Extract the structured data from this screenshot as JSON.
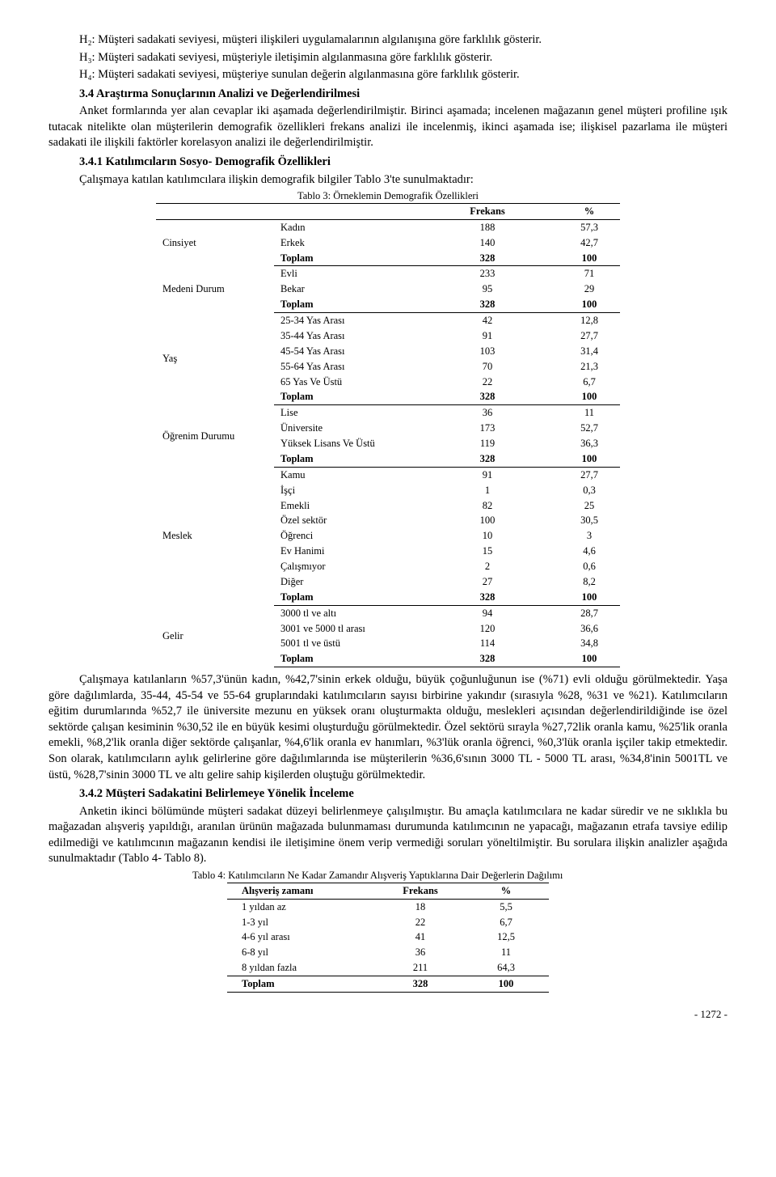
{
  "hypotheses": {
    "h2": "H₂: Müşteri sadakati seviyesi, müşteri ilişkileri uygulamalarının algılanışına göre farklılık gösterir.",
    "h3": "H₃: Müşteri sadakati seviyesi,  müşteriyle iletişimin algılanmasına göre farklılık gösterir.",
    "h4": "H₄: Müşteri sadakati seviyesi, müşteriye sunulan değerin algılanmasına göre farklılık gösterir."
  },
  "sec34": {
    "title": "3.4 Araştırma Sonuçlarının Analizi ve Değerlendirilmesi",
    "p1": "Anket formlarında yer alan cevaplar iki aşamada değerlendirilmiştir. Birinci aşamada; incelenen mağazanın genel müşteri profiline ışık tutacak nitelikte olan müşterilerin demografik özellikleri frekans analizi ile incelenmiş, ikinci aşamada ise; ilişkisel pazarlama ile müşteri sadakati ile ilişkili faktörler korelasyon analizi ile değerlendirilmiştir."
  },
  "sec341": {
    "title": "3.4.1 Katılımcıların Sosyo- Demografik Özellikleri",
    "p1": "Çalışmaya katılan katılımcılara ilişkin demografik bilgiler Tablo 3'te sunulmaktadır:"
  },
  "table3": {
    "caption": "Tablo 3: Örneklemin Demografik Özellikleri",
    "head_freq": "Frekans",
    "head_pct": "%",
    "groups": [
      {
        "label": "Cinsiyet",
        "rows": [
          {
            "name": "Kadın",
            "freq": "188",
            "pct": "57,3"
          },
          {
            "name": "Erkek",
            "freq": "140",
            "pct": "42,7"
          }
        ],
        "total": {
          "name": "Toplam",
          "freq": "328",
          "pct": "100"
        }
      },
      {
        "label": "Medeni Durum",
        "rows": [
          {
            "name": "Evli",
            "freq": "233",
            "pct": "71"
          },
          {
            "name": "Bekar",
            "freq": "95",
            "pct": "29"
          }
        ],
        "total": {
          "name": "Toplam",
          "freq": "328",
          "pct": "100"
        }
      },
      {
        "label": "Yaş",
        "rows": [
          {
            "name": "25-34 Yas Arası",
            "freq": "42",
            "pct": "12,8"
          },
          {
            "name": "35-44 Yas Arası",
            "freq": "91",
            "pct": "27,7"
          },
          {
            "name": "45-54 Yas Arası",
            "freq": "103",
            "pct": "31,4"
          },
          {
            "name": "55-64 Yas Arası",
            "freq": "70",
            "pct": "21,3"
          },
          {
            "name": "65 Yas Ve Üstü",
            "freq": "22",
            "pct": "6,7"
          }
        ],
        "total": {
          "name": "Toplam",
          "freq": "328",
          "pct": "100"
        }
      },
      {
        "label": "Öğrenim Durumu",
        "rows": [
          {
            "name": "Lise",
            "freq": "36",
            "pct": "11"
          },
          {
            "name": "Üniversite",
            "freq": "173",
            "pct": "52,7"
          },
          {
            "name": "Yüksek Lisans Ve Üstü",
            "freq": "119",
            "pct": "36,3"
          }
        ],
        "total": {
          "name": "Toplam",
          "freq": "328",
          "pct": "100"
        }
      },
      {
        "label": "Meslek",
        "rows": [
          {
            "name": "Kamu",
            "freq": "91",
            "pct": "27,7"
          },
          {
            "name": "İşçi",
            "freq": "1",
            "pct": "0,3"
          },
          {
            "name": "Emekli",
            "freq": "82",
            "pct": "25"
          },
          {
            "name": "Özel sektör",
            "freq": "100",
            "pct": "30,5"
          },
          {
            "name": "Öğrenci",
            "freq": "10",
            "pct": "3"
          },
          {
            "name": "Ev Hanimi",
            "freq": "15",
            "pct": "4,6"
          },
          {
            "name": "Çalışmıyor",
            "freq": "2",
            "pct": "0,6"
          },
          {
            "name": "Diğer",
            "freq": "27",
            "pct": "8,2"
          }
        ],
        "total": {
          "name": "Toplam",
          "freq": "328",
          "pct": "100"
        }
      },
      {
        "label": "Gelir",
        "rows": [
          {
            "name": "3000 tl ve altı",
            "freq": "94",
            "pct": "28,7"
          },
          {
            "name": "3001 ve 5000 tl arası",
            "freq": "120",
            "pct": "36,6"
          },
          {
            "name": "5001 tl ve üstü",
            "freq": "114",
            "pct": "34,8"
          }
        ],
        "total": {
          "name": "Toplam",
          "freq": "328",
          "pct": "100"
        }
      }
    ]
  },
  "after_t3": {
    "p1": "Çalışmaya katılanların %57,3'ünün kadın, %42,7'sinin erkek olduğu, büyük çoğunluğunun ise (%71) evli olduğu görülmektedir. Yaşa göre dağılımlarda, 35-44, 45-54 ve 55-64 gruplarındaki katılımcıların sayısı birbirine yakındır (sırasıyla %28, %31 ve %21). Katılımcıların eğitim durumlarında %52,7 ile üniversite mezunu en yüksek oranı oluşturmakta olduğu, meslekleri açısından değerlendirildiğinde ise özel sektörde çalışan kesiminin %30,52 ile en büyük kesimi oluşturduğu görülmektedir. Özel sektörü sırayla %27,72lik oranla kamu, %25'lik oranla emekli, %8,2'lik oranla diğer sektörde çalışanlar, %4,6'lik oranla ev hanımları, %3'lük oranla öğrenci, %0,3'lük oranla işçiler takip etmektedir. Son olarak, katılımcıların aylık gelirlerine göre dağılımlarında ise müşterilerin %36,6'sının 3000 TL - 5000 TL arası, %34,8'inin 5001TL ve üstü, %28,7'sinin 3000 TL ve altı gelire sahip kişilerden oluştuğu görülmektedir."
  },
  "sec342": {
    "title": "3.4.2 Müşteri Sadakatini Belirlemeye Yönelik İnceleme",
    "p1": "Anketin ikinci bölümünde müşteri sadakat düzeyi belirlenmeye çalışılmıştır. Bu amaçla katılımcılara ne kadar süredir ve ne sıklıkla bu mağazadan alışveriş yapıldığı, aranılan ürünün mağazada bulunmaması durumunda katılımcının ne yapacağı, mağazanın etrafa tavsiye edilip edilmediği ve katılımcının mağazanın kendisi ile iletişimine önem verip vermediği soruları yöneltilmiştir. Bu sorulara ilişkin analizler aşağıda sunulmaktadır (Tablo 4- Tablo 8)."
  },
  "table4": {
    "caption": "Tablo 4:  Katılımcıların Ne Kadar Zamandır Alışveriş Yaptıklarına Dair Değerlerin Dağılımı",
    "head_time": "Alışveriş zamanı",
    "head_freq": "Frekans",
    "head_pct": "%",
    "rows": [
      {
        "name": "1 yıldan az",
        "freq": "18",
        "pct": "5,5"
      },
      {
        "name": "1-3 yıl",
        "freq": "22",
        "pct": "6,7"
      },
      {
        "name": "4-6 yıl arası",
        "freq": "41",
        "pct": "12,5"
      },
      {
        "name": "6-8 yıl",
        "freq": "36",
        "pct": "11"
      },
      {
        "name": "8 yıldan fazla",
        "freq": "211",
        "pct": "64,3"
      }
    ],
    "total": {
      "name": "Toplam",
      "freq": "328",
      "pct": "100"
    }
  },
  "pagenum": "- 1272 -"
}
